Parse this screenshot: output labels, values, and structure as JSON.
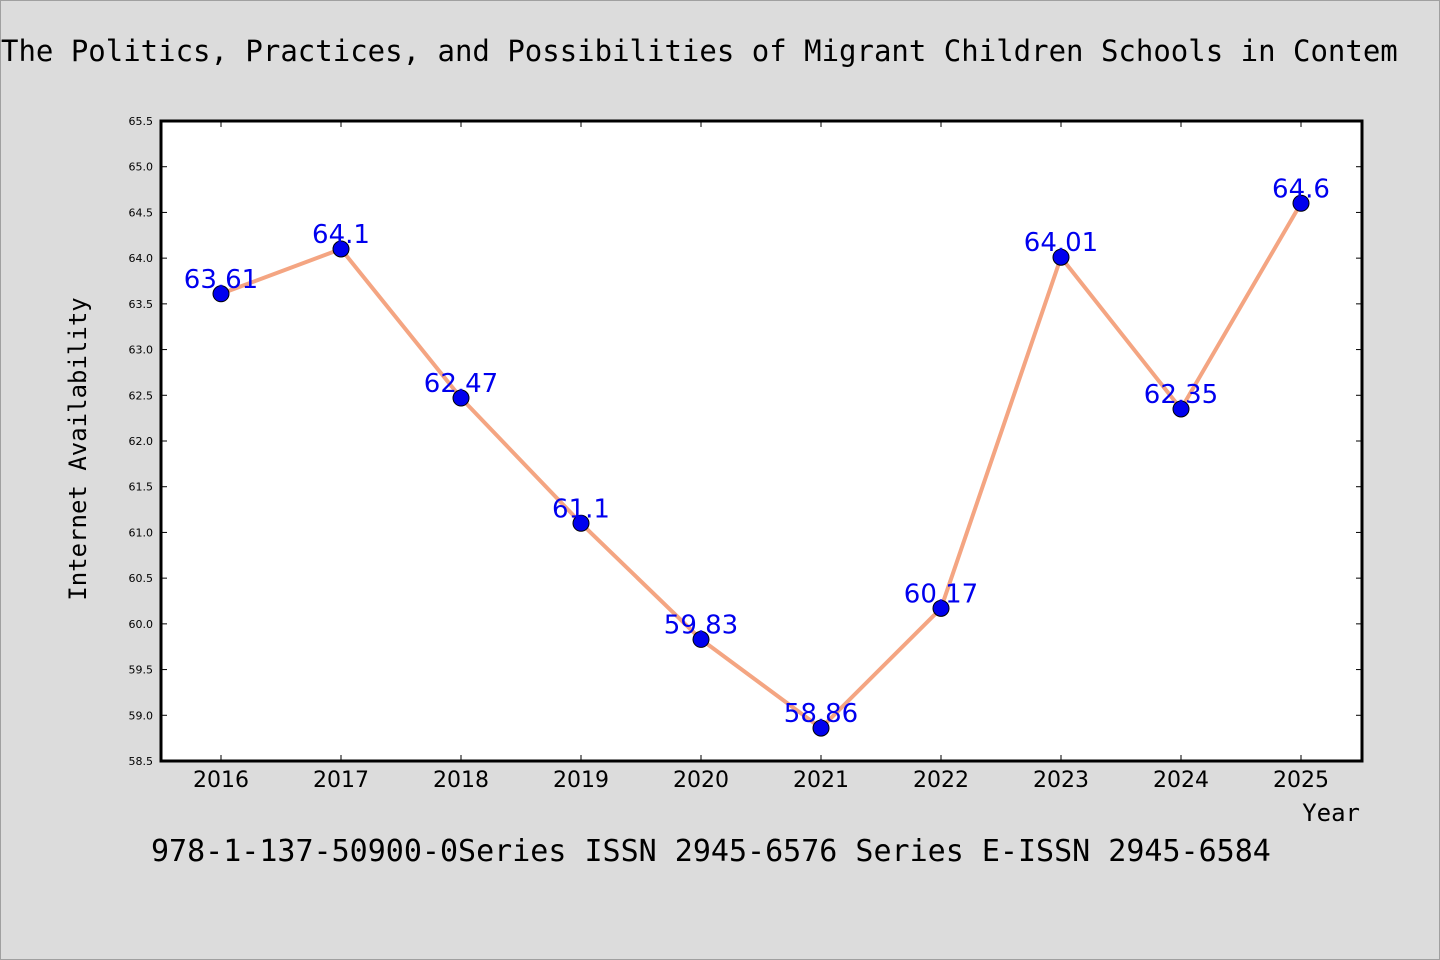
{
  "page": {
    "title": "The Politics, Practices, and Possibilities of Migrant Children Schools in Contem",
    "caption": "978-1-137-50900-0Series ISSN 2945-6576 Series E-ISSN 2945-6584"
  },
  "chart_data": {
    "type": "line",
    "title": "The Politics, Practices, and Possibilities of Migrant Children Schools in Contem",
    "xlabel": "Year",
    "ylabel": "Internet Availability",
    "categories": [
      "2016",
      "2017",
      "2018",
      "2019",
      "2020",
      "2021",
      "2022",
      "2023",
      "2024",
      "2025"
    ],
    "series": [
      {
        "values": [
          63.61,
          64.1,
          62.47,
          61.1,
          59.83,
          58.86,
          60.17,
          64.01,
          62.35,
          64.6
        ],
        "labels": [
          "63.61",
          "64.1",
          "62.47",
          "61.1",
          "59.83",
          "58.86",
          "60.17",
          "64.01",
          "62.35",
          "64.6"
        ]
      }
    ],
    "ylim": [
      58.5,
      65.5
    ],
    "yticks": [
      "58.5",
      "59.0",
      "59.5",
      "60.0",
      "60.5",
      "61.0",
      "61.5",
      "62.0",
      "62.5",
      "63.0",
      "63.5",
      "64.0",
      "64.5",
      "65.0",
      "65.5"
    ],
    "grid": false,
    "legend": "none",
    "colors": {
      "line": "#f4a582",
      "marker": "#0000ee",
      "label": "#0000ee",
      "background": "#dcdcdc",
      "plot_area": "#ffffff"
    }
  }
}
